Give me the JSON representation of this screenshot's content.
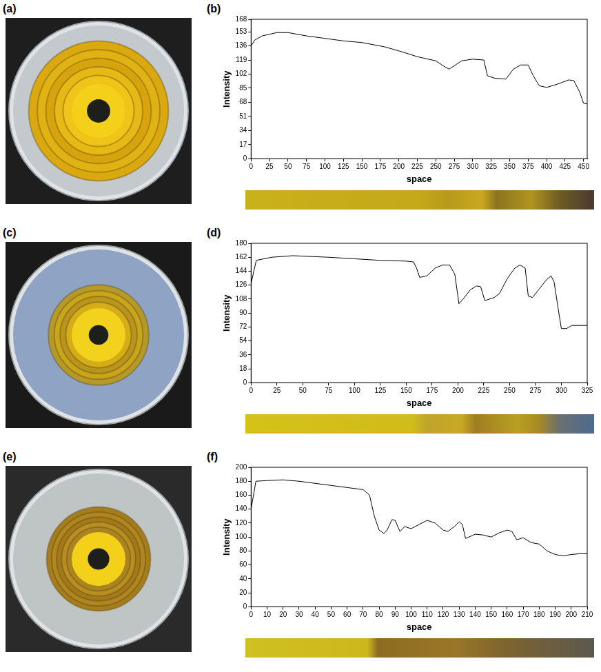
{
  "images": [
    {
      "label": "(a)"
    },
    {
      "label": "(c)"
    },
    {
      "label": "(e)"
    }
  ],
  "chart_data": [
    {
      "type": "line",
      "title": "(b)",
      "x_label": "space",
      "y_label": "Intensity",
      "color": "#000000",
      "grid": false,
      "x": [
        0,
        5,
        15,
        25,
        35,
        50,
        75,
        100,
        125,
        150,
        180,
        200,
        225,
        250,
        260,
        268,
        275,
        285,
        300,
        315,
        320,
        330,
        345,
        355,
        365,
        375,
        382,
        390,
        400,
        415,
        430,
        437,
        445,
        450,
        455
      ],
      "values": [
        136,
        143,
        148,
        150,
        152,
        152,
        148,
        145,
        142,
        140,
        135,
        130,
        123,
        118,
        112,
        108,
        112,
        118,
        120,
        119,
        100,
        97,
        96,
        108,
        113,
        113,
        100,
        88,
        86,
        90,
        95,
        94,
        80,
        67,
        66
      ],
      "xlim": [
        0,
        455
      ],
      "xticks": [
        0,
        25,
        50,
        75,
        100,
        125,
        150,
        175,
        200,
        225,
        250,
        275,
        300,
        325,
        350,
        375,
        400,
        425,
        450
      ],
      "ylim": [
        0,
        168
      ],
      "yticks": [
        0,
        17,
        34,
        51,
        68,
        85,
        102,
        119,
        136,
        153,
        168
      ]
    },
    {
      "type": "line",
      "title": "(d)",
      "x_label": "space",
      "y_label": "Intensity",
      "color": "#000000",
      "grid": false,
      "x": [
        0,
        5,
        20,
        40,
        75,
        100,
        125,
        150,
        157,
        160,
        163,
        170,
        178,
        185,
        192,
        197,
        201,
        205,
        212,
        218,
        222,
        226,
        235,
        240,
        248,
        255,
        260,
        265,
        268,
        272,
        278,
        285,
        290,
        293,
        297,
        300,
        305,
        310,
        325
      ],
      "values": [
        128,
        158,
        162,
        164,
        162,
        160,
        158,
        157,
        156,
        148,
        136,
        138,
        148,
        152,
        152,
        140,
        102,
        108,
        120,
        125,
        124,
        106,
        110,
        115,
        135,
        148,
        152,
        148,
        112,
        110,
        120,
        132,
        138,
        130,
        95,
        70,
        70,
        74,
        74
      ],
      "xlim": [
        0,
        325
      ],
      "xticks": [
        0,
        25,
        50,
        75,
        100,
        125,
        150,
        175,
        200,
        225,
        250,
        275,
        300,
        325
      ],
      "ylim": [
        0,
        180
      ],
      "yticks": [
        0,
        18,
        36,
        54,
        72,
        90,
        108,
        126,
        144,
        162,
        180
      ]
    },
    {
      "type": "line",
      "title": "(f)",
      "x_label": "space",
      "y_label": "Intensity",
      "color": "#000000",
      "grid": false,
      "x": [
        0,
        3,
        10,
        20,
        30,
        40,
        50,
        60,
        70,
        74,
        77,
        80,
        83,
        85,
        88,
        90,
        93,
        96,
        100,
        105,
        110,
        115,
        120,
        123,
        127,
        130,
        132,
        134,
        140,
        145,
        150,
        155,
        160,
        163,
        166,
        170,
        175,
        180,
        185,
        190,
        195,
        200,
        205,
        210
      ],
      "values": [
        140,
        180,
        181,
        182,
        180,
        177,
        174,
        171,
        168,
        160,
        130,
        110,
        105,
        110,
        125,
        124,
        108,
        115,
        112,
        118,
        124,
        120,
        110,
        108,
        115,
        122,
        118,
        98,
        104,
        103,
        100,
        106,
        110,
        108,
        96,
        99,
        92,
        90,
        80,
        75,
        73,
        75,
        76,
        76
      ],
      "xlim": [
        0,
        210
      ],
      "xticks": [
        0,
        10,
        20,
        30,
        40,
        50,
        60,
        70,
        80,
        90,
        100,
        110,
        120,
        130,
        140,
        150,
        160,
        170,
        180,
        190,
        200,
        210
      ],
      "ylim": [
        0,
        200
      ],
      "yticks": [
        0,
        20,
        40,
        60,
        80,
        100,
        120,
        140,
        160,
        180,
        200
      ]
    }
  ]
}
